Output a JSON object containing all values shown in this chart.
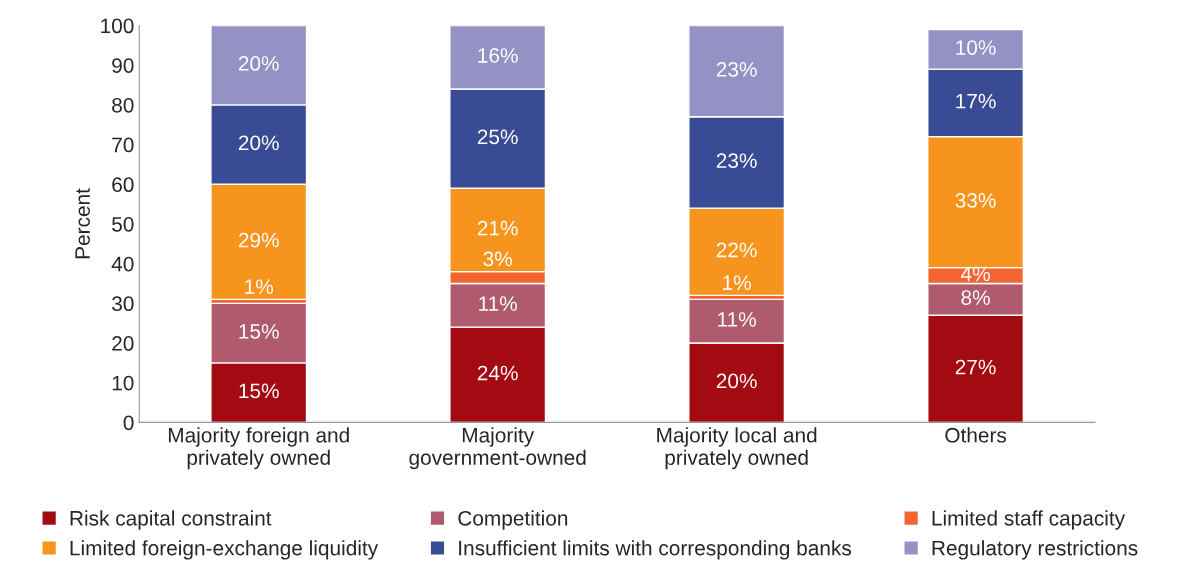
{
  "chart_data": {
    "type": "bar",
    "stacked": true,
    "ylabel": "Percent",
    "categories": [
      "Majority foreign and\nprivately owned",
      "Majority\ngovernment-owned",
      "Majority local and\nprivately owned",
      "Others"
    ],
    "series": [
      {
        "name": "Risk capital constraint",
        "color": "#a30a12",
        "values": [
          15,
          24,
          20,
          27
        ],
        "value_labels": [
          "15%",
          "24%",
          "20%",
          "27%"
        ]
      },
      {
        "name": "Competition",
        "color": "#b05a6e",
        "values": [
          15,
          11,
          11,
          8
        ],
        "value_labels": [
          "15%",
          "11%",
          "11%",
          "8%"
        ]
      },
      {
        "name": "Limited staff capacity",
        "color": "#f26530",
        "values": [
          1,
          3,
          1,
          4
        ],
        "value_labels": [
          "1%",
          "3%",
          "1%",
          "4%"
        ]
      },
      {
        "name": "Limited foreign-exchange liquidity",
        "color": "#f7941d",
        "values": [
          29,
          21,
          22,
          33
        ],
        "value_labels": [
          "29%",
          "21%",
          "22%",
          "33%"
        ]
      },
      {
        "name": "Insufficient limits with corresponding banks",
        "color": "#394b94",
        "values": [
          20,
          25,
          23,
          17
        ],
        "value_labels": [
          "20%",
          "25%",
          "23%",
          "17%"
        ]
      },
      {
        "name": "Regulatory restrictions",
        "color": "#9491c4",
        "values": [
          20,
          16,
          23,
          10
        ],
        "value_labels": [
          "20%",
          "16%",
          "23%",
          "10%"
        ]
      }
    ],
    "ylim": [
      0,
      100
    ],
    "yticks": [
      0,
      10,
      20,
      30,
      40,
      50,
      60,
      70,
      80,
      90,
      100
    ],
    "legend": "bottom",
    "grid": false
  }
}
